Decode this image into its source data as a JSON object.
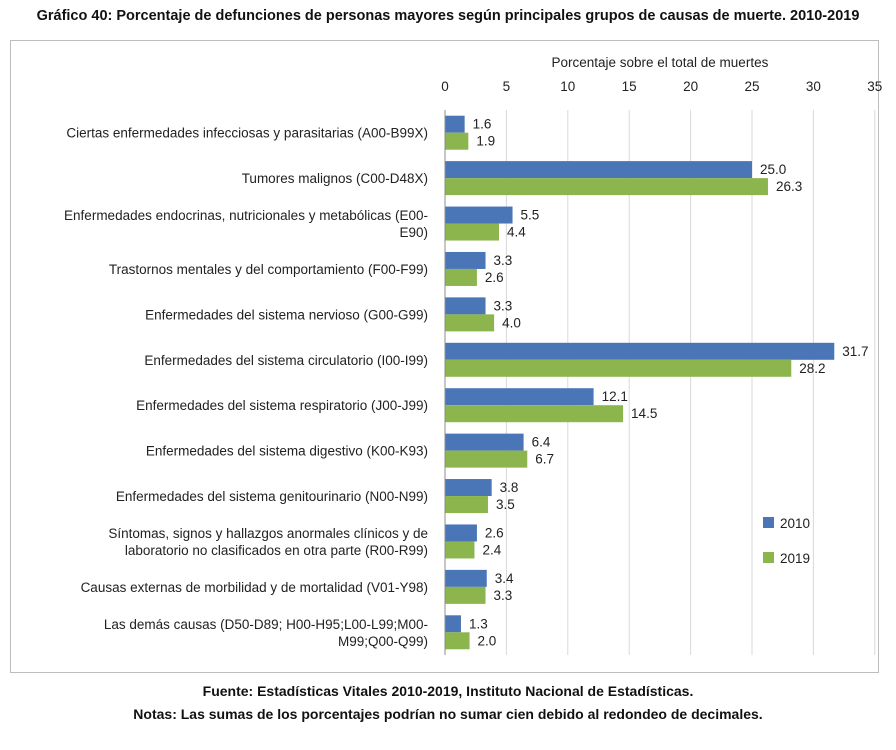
{
  "title": "Gráfico 40: Porcentaje de defunciones de personas mayores según principales grupos de causas de muerte. 2010-2019",
  "footnotes": {
    "source": "Fuente: Estadísticas Vitales 2010-2019, Instituto Nacional de Estadísticas.",
    "notes": "Notas: Las sumas de los porcentajes podrían no sumar cien debido al redondeo de decimales."
  },
  "chart_data": {
    "type": "bar",
    "orientation": "horizontal",
    "title": "Gráfico 40: Porcentaje de defunciones de personas mayores según principales grupos de causas de muerte. 2010-2019",
    "xlabel": "Porcentaje sobre el total de muertes",
    "xaxis_position": "top",
    "xlim": [
      0,
      35
    ],
    "xticks": [
      0,
      5,
      10,
      15,
      20,
      25,
      30,
      35
    ],
    "grid": true,
    "legend_position": "right",
    "categories": [
      [
        "Ciertas enfermedades infecciosas y parasitarias (A00-B99X)"
      ],
      [
        "Tumores malignos (C00-D48X)"
      ],
      [
        "Enfermedades endocrinas, nutricionales y metabólicas (E00-",
        "E90)"
      ],
      [
        "Trastornos mentales y del comportamiento (F00-F99)"
      ],
      [
        "Enfermedades del sistema nervioso (G00-G99)"
      ],
      [
        "Enfermedades del sistema circulatorio (I00-I99)"
      ],
      [
        "Enfermedades del sistema respiratorio (J00-J99)"
      ],
      [
        "Enfermedades del sistema digestivo (K00-K93)"
      ],
      [
        "Enfermedades del sistema genitourinario (N00-N99)"
      ],
      [
        "Síntomas, signos y hallazgos anormales clínicos y de",
        "laboratorio no clasificados en otra parte (R00-R99)"
      ],
      [
        "Causas externas de morbilidad y de mortalidad (V01-Y98)"
      ],
      [
        "Las demás causas (D50-D89; H00-H95;L00-L99;M00-",
        "M99;Q00-Q99)"
      ]
    ],
    "series": [
      {
        "name": "2010",
        "color": "#4a76b8",
        "values": [
          1.6,
          25.0,
          5.5,
          3.3,
          3.3,
          31.7,
          12.1,
          6.4,
          3.8,
          2.6,
          3.4,
          1.3
        ]
      },
      {
        "name": "2019",
        "color": "#8db54e",
        "values": [
          1.9,
          26.3,
          4.4,
          2.6,
          4.0,
          28.2,
          14.5,
          6.7,
          3.5,
          2.4,
          3.3,
          2.0
        ]
      }
    ]
  }
}
